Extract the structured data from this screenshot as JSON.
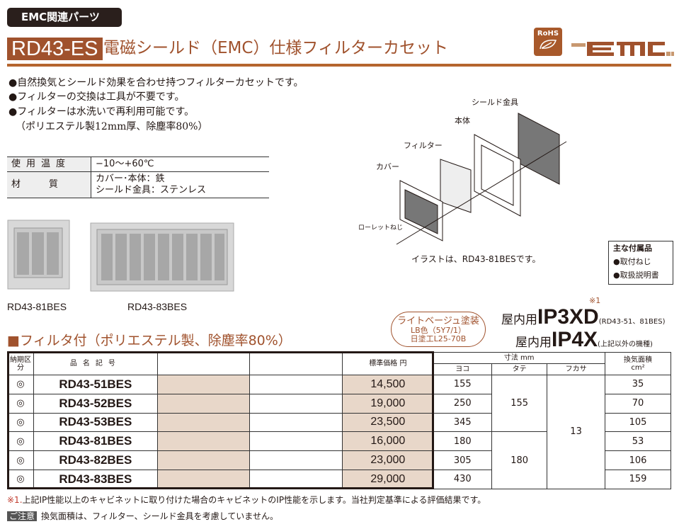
{
  "category": "EMC関連パーツ",
  "model": "RD43-ES",
  "title": "電磁シールド（EMC）仕様フィルターカセット",
  "logos": {
    "rohs": "RoHS",
    "emc": "EMC"
  },
  "colors": {
    "brand": "#a0522d",
    "beige": "#e8d7c9",
    "dark": "#2a1f1c"
  },
  "features": [
    "●自然換気とシールド効果を合わせ持つフィルターカセットです。",
    "●フィルターの交換は工具が不要です。",
    "●フィルターは水洗いで再利用可能です。",
    "（ポリエステル製12mm厚、除塵率80%）"
  ],
  "spec": [
    {
      "label": "使用温度",
      "value": [
        "−10〜+60℃"
      ]
    },
    {
      "label": "材質",
      "value": [
        "カバー･本体：鉄",
        "シールド金具：ステンレス"
      ]
    }
  ],
  "photos": [
    "RD43-81BES",
    "RD43-83BES"
  ],
  "diagram": {
    "labels": [
      "シールド金具",
      "本体",
      "フィルター",
      "カバー",
      "ローレットねじ"
    ],
    "caption": "イラストは、RD43-81BESです。"
  },
  "accessories": {
    "title": "主な付属品",
    "items": [
      "●取付ねじ",
      "●取扱説明書"
    ]
  },
  "section_title": "■フィルタ付（ポリエステル製、除塵率80%）",
  "paint": {
    "name": "ライトベージュ塗装",
    "code1": "LB色（5Y7/1）",
    "code2": "日塗工L25-70B"
  },
  "ip": {
    "note_mark": "※1",
    "prefix": "屋内用",
    "r1": "IP3XD",
    "r1_note": "(RD43-51、81BES)",
    "r2": "IP4X",
    "r2_note": "(上記以外の機種)"
  },
  "table": {
    "h_delivery": "納期区分",
    "h_name": "品名記号",
    "h_price": "標準価格",
    "h_price_unit": "円",
    "h_dim": "寸法",
    "h_dim_unit": "mm",
    "h_w": "ヨコ",
    "h_h": "タテ",
    "h_d": "フカサ",
    "h_area": "換気面積",
    "h_area_unit": "cm²",
    "rows": [
      {
        "mark": "◎",
        "name": "RD43-51BES",
        "price": "14,500",
        "w": "155",
        "area": "35"
      },
      {
        "mark": "◎",
        "name": "RD43-52BES",
        "price": "19,000",
        "w": "250",
        "area": "70"
      },
      {
        "mark": "◎",
        "name": "RD43-53BES",
        "price": "23,500",
        "w": "345",
        "area": "105"
      },
      {
        "mark": "◎",
        "name": "RD43-81BES",
        "price": "16,000",
        "w": "180",
        "area": "53"
      },
      {
        "mark": "◎",
        "name": "RD43-82BES",
        "price": "23,000",
        "w": "305",
        "area": "106"
      },
      {
        "mark": "◎",
        "name": "RD43-83BES",
        "price": "29,000",
        "w": "430",
        "area": "159"
      }
    ],
    "h_group1": "155",
    "h_group2": "180",
    "depth": "13"
  },
  "notes": {
    "n1_mark": "※1.",
    "n1": "上記IP性能以上のキャビネットに取り付けた場合のキャビネットのIP性能を示します。当社判定基準による評価結果です。",
    "n2_label": "ご注意",
    "n2": "換気面積は、フィルター、シールド金具を考慮していません。"
  }
}
